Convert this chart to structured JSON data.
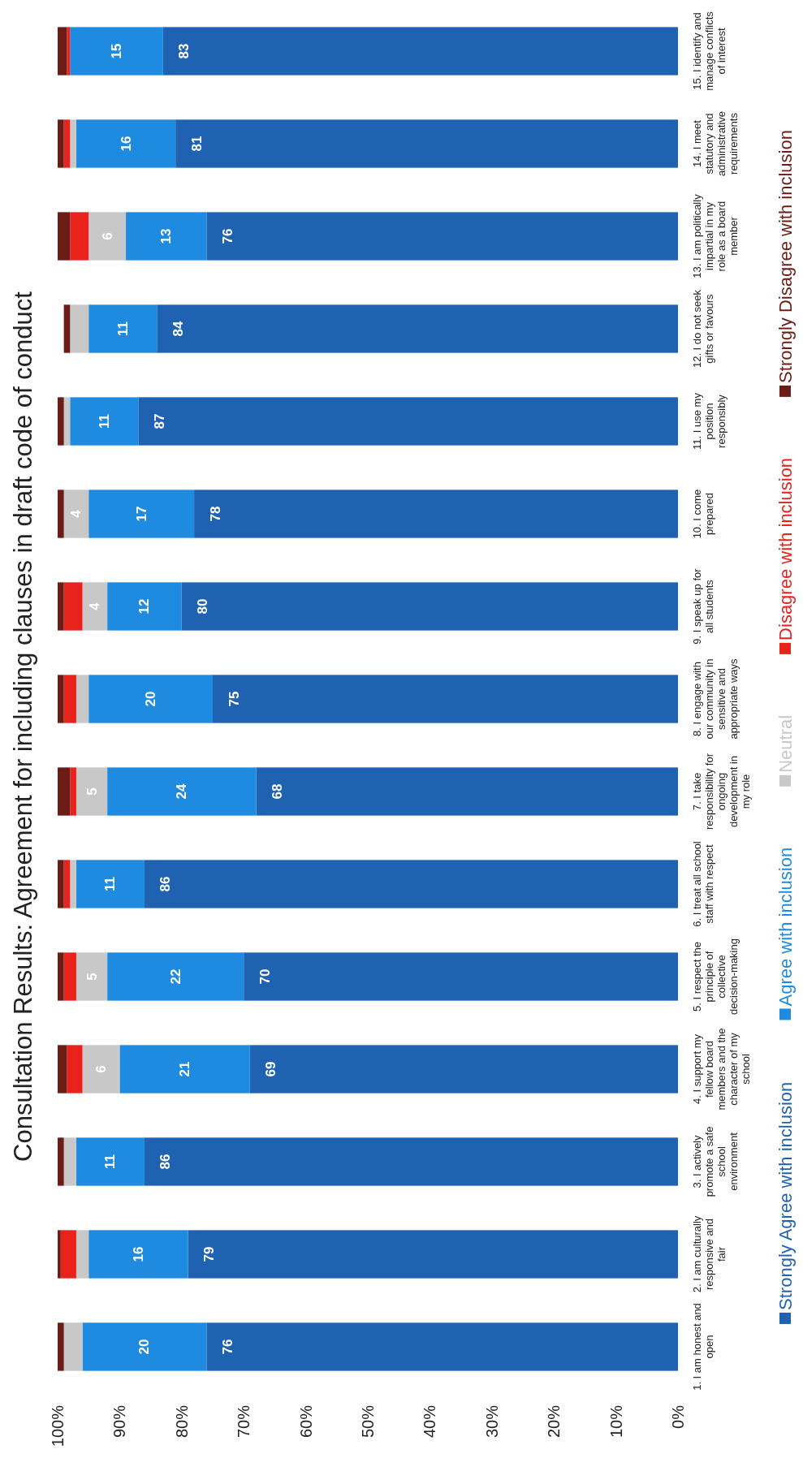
{
  "chart_data": {
    "type": "bar",
    "title": "Consultation Results: Agreement for including clauses in draft code of conduct",
    "orientation": "horizontal",
    "categories": [
      "15. I identify and manage conflicts of interest",
      "14. I meet statutory and administrative requirements",
      "13. I am politically impartial in my role as a board member",
      "12. I do not seek gifts or favours",
      "11. I use my position responsibly",
      "10. I come prepared",
      "9. I speak up for all students",
      "8. I engage with our community in sensitive and appropriate ways",
      "7. I take responsibility for ongoing development in my role",
      "6. I treat all school staff with respect",
      "5. I respect the principle of collective decision-making",
      "4. I support my fellow board members and the character of my school",
      "3. I actively promote a safe school environment",
      "2. I am culturally responsive and fair",
      "1. I am honest and open"
    ],
    "stacked": true,
    "series": [
      {
        "name": "Strongly Agree with inclusion",
        "color": "#1f62b2",
        "values": [
          83,
          81,
          76,
          84,
          87,
          78,
          80,
          75,
          68,
          86,
          70,
          69,
          86,
          79,
          76
        ],
        "value_labels": [
          "83",
          "81",
          "76",
          "84",
          "87",
          "78",
          "80",
          "75",
          "68",
          "86",
          "70",
          "69",
          "86",
          "79",
          "76"
        ]
      },
      {
        "name": "Agree with inclusion",
        "color": "#1e8be0",
        "values": [
          15,
          16,
          13,
          11,
          11,
          17,
          12,
          20,
          24,
          11,
          22,
          21,
          11,
          16,
          20
        ],
        "value_labels": [
          "15",
          "16",
          "13",
          "11",
          "11",
          "17",
          "12",
          "20",
          "24",
          "11",
          "22",
          "21",
          "11",
          "16",
          "20"
        ]
      },
      {
        "name": "Neutral",
        "color": "#c8c8c8",
        "values": [
          0,
          1,
          6,
          3,
          1,
          4,
          4,
          2,
          5,
          1,
          5,
          6,
          2,
          2,
          3
        ],
        "value_labels": [
          null,
          null,
          "6",
          null,
          null,
          "4",
          "4",
          null,
          "5",
          null,
          "5",
          "6",
          null,
          null,
          null
        ]
      },
      {
        "name": "Disagree with inclusion",
        "color": "#e8231c",
        "values": [
          0.5,
          1,
          3,
          0,
          0,
          0,
          3,
          2,
          1,
          1,
          2,
          2.5,
          0,
          2.5,
          0
        ]
      },
      {
        "name": "Strongly Disagree with inclusion",
        "color": "#6b1c14",
        "values": [
          1.5,
          1,
          2,
          1,
          1,
          1,
          1,
          1,
          2,
          1,
          1,
          1.5,
          1,
          0.5,
          1
        ]
      }
    ],
    "xlim": [
      100,
      0
    ],
    "xticks": [
      {
        "value": 100,
        "label": "100%"
      },
      {
        "value": 90,
        "label": "90%"
      },
      {
        "value": 80,
        "label": "80%"
      },
      {
        "value": 70,
        "label": "70%"
      },
      {
        "value": 60,
        "label": "60%"
      },
      {
        "value": 50,
        "label": "50%"
      },
      {
        "value": 40,
        "label": "40%"
      },
      {
        "value": 30,
        "label": "30%"
      },
      {
        "value": 20,
        "label": "20%"
      },
      {
        "value": 10,
        "label": "10%"
      },
      {
        "value": 0,
        "label": "0%"
      }
    ],
    "grid": false,
    "legend": "bottom"
  }
}
